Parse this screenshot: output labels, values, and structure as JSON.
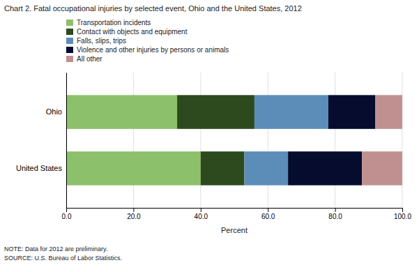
{
  "chart_data": {
    "type": "bar",
    "orientation": "horizontal",
    "stacked": true,
    "title": "Chart 2.  Fatal occupational injuries by selected event, Ohio and the United States, 2012",
    "categories": [
      "United States",
      "Ohio"
    ],
    "series": [
      {
        "name": "Transportation incidents",
        "color": "#8dc06a",
        "values": [
          40.0,
          33.0
        ]
      },
      {
        "name": "Contact with objects and equipment",
        "color": "#2d4a1e",
        "values": [
          13.0,
          23.0
        ]
      },
      {
        "name": "Falls, slips, trips",
        "color": "#5b8db8",
        "values": [
          13.0,
          22.0
        ]
      },
      {
        "name": "Violence and other injuries by persons or animals",
        "color": "#060c2e",
        "values": [
          22.0,
          14.0
        ]
      },
      {
        "name": "All other",
        "color": "#c09090",
        "values": [
          12.0,
          8.0
        ]
      }
    ],
    "xlabel": "Percent",
    "xlim": [
      0,
      100
    ],
    "xticks": [
      {
        "value": 0.0,
        "label": "0.0"
      },
      {
        "value": 20.0,
        "label": "20.0"
      },
      {
        "value": 40.0,
        "label": "40.0"
      },
      {
        "value": 60.0,
        "label": "60.0"
      },
      {
        "value": 80.0,
        "label": "80.0"
      },
      {
        "value": 100.0,
        "label": "100.0"
      }
    ],
    "grid": true,
    "legend": "top",
    "annotations": [
      "NOTE: Data for 2012 are preliminary.",
      "SOURCE: U.S. Bureau of Labor Statistics."
    ]
  }
}
